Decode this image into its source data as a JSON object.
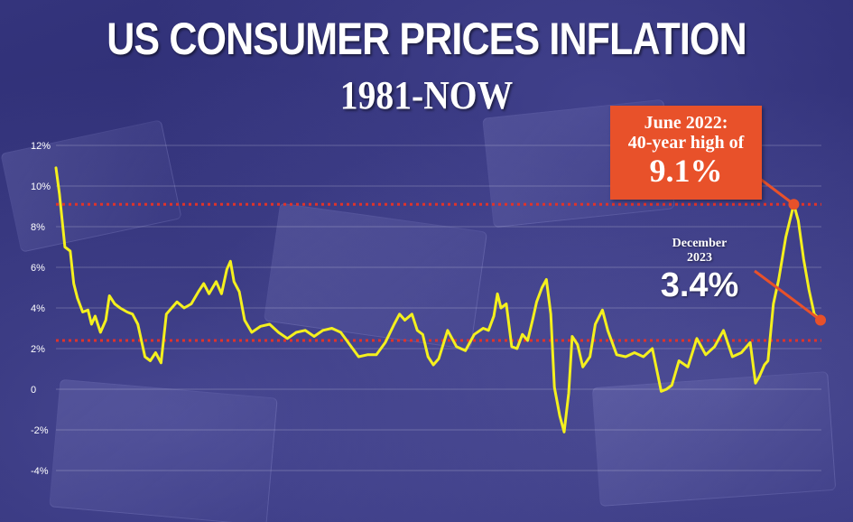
{
  "title": "US CONSUMER PRICES INFLATION",
  "subtitle": "1981-NOW",
  "colors": {
    "line": "#f4f01e",
    "reference_line": "#e0332a",
    "annotation_box": "#e8512a",
    "annotation_dot": "#e8512a",
    "text": "#ffffff"
  },
  "annotations": {
    "peak": {
      "line1": "June 2022:",
      "line2": "40-year high of",
      "value": "9.1%"
    },
    "latest": {
      "line1": "December",
      "line2": "2023",
      "value": "3.4%"
    }
  },
  "chart_data": {
    "type": "line",
    "title": "US CONSUMER PRICES INFLATION",
    "subtitle": "1981-NOW",
    "xlabel": "",
    "ylabel": "",
    "xlim": [
      1981,
      2024
    ],
    "ylim": [
      -4,
      12
    ],
    "yticks": [
      {
        "value": 12,
        "label": "12%"
      },
      {
        "value": 10,
        "label": "10%"
      },
      {
        "value": 8,
        "label": "8%"
      },
      {
        "value": 6,
        "label": "6%"
      },
      {
        "value": 4,
        "label": "4%"
      },
      {
        "value": 2,
        "label": "2%"
      },
      {
        "value": 0,
        "label": "0"
      },
      {
        "value": -2,
        "label": "-2%"
      },
      {
        "value": -4,
        "label": "-4%"
      }
    ],
    "grid": true,
    "reference_lines": [
      9.1,
      2.4
    ],
    "highlight_points": [
      {
        "x": 2022.45,
        "y": 9.1
      },
      {
        "x": 2023.95,
        "y": 3.4
      }
    ],
    "series": [
      {
        "x": [
          1981.0,
          1981.2,
          1981.5,
          1981.8,
          1982.0,
          1982.2,
          1982.5,
          1982.8,
          1983.0,
          1983.2,
          1983.5,
          1983.8,
          1984.0,
          1984.3,
          1984.6,
          1985.0,
          1985.3,
          1985.6,
          1986.0,
          1986.3,
          1986.6,
          1986.9,
          1987.2,
          1987.5,
          1987.8,
          1988.2,
          1988.6,
          1989.0,
          1989.3,
          1989.6,
          1990.0,
          1990.3,
          1990.6,
          1990.8,
          1991.0,
          1991.3,
          1991.6,
          1992.0,
          1992.5,
          1993.0,
          1993.5,
          1994.0,
          1994.5,
          1995.0,
          1995.5,
          1996.0,
          1996.5,
          1997.0,
          1997.5,
          1998.0,
          1998.5,
          1999.0,
          1999.5,
          2000.0,
          2000.3,
          2000.6,
          2001.0,
          2001.3,
          2001.6,
          2001.9,
          2002.2,
          2002.5,
          2003.0,
          2003.5,
          2004.0,
          2004.5,
          2005.0,
          2005.3,
          2005.6,
          2005.8,
          2006.0,
          2006.3,
          2006.6,
          2006.9,
          2007.2,
          2007.5,
          2007.8,
          2008.0,
          2008.3,
          2008.55,
          2008.8,
          2009.0,
          2009.3,
          2009.55,
          2009.8,
          2010.0,
          2010.3,
          2010.6,
          2011.0,
          2011.3,
          2011.7,
          2012.0,
          2012.5,
          2013.0,
          2013.5,
          2014.0,
          2014.5,
          2015.0,
          2015.3,
          2015.6,
          2016.0,
          2016.5,
          2017.0,
          2017.5,
          2018.0,
          2018.5,
          2019.0,
          2019.5,
          2020.0,
          2020.3,
          2020.5,
          2020.8,
          2021.0,
          2021.3,
          2021.6,
          2022.0,
          2022.45,
          2022.7,
          2023.0,
          2023.3,
          2023.6,
          2023.95
        ],
        "y": [
          10.9,
          9.6,
          7.0,
          6.8,
          5.2,
          4.5,
          3.8,
          3.9,
          3.2,
          3.6,
          2.8,
          3.4,
          4.6,
          4.2,
          4.0,
          3.8,
          3.7,
          3.2,
          1.6,
          1.4,
          1.8,
          1.3,
          3.7,
          4.0,
          4.3,
          4.0,
          4.2,
          4.8,
          5.2,
          4.7,
          5.3,
          4.7,
          5.9,
          6.3,
          5.3,
          4.8,
          3.4,
          2.8,
          3.1,
          3.2,
          2.8,
          2.5,
          2.8,
          2.9,
          2.6,
          2.9,
          3.0,
          2.8,
          2.2,
          1.6,
          1.7,
          1.7,
          2.3,
          3.2,
          3.7,
          3.4,
          3.7,
          2.9,
          2.7,
          1.6,
          1.2,
          1.5,
          2.9,
          2.1,
          1.9,
          2.7,
          3.0,
          2.9,
          3.6,
          4.7,
          4.0,
          4.2,
          2.1,
          2.0,
          2.7,
          2.4,
          3.5,
          4.3,
          5.0,
          5.4,
          3.7,
          0.1,
          -1.3,
          -2.1,
          -0.2,
          2.6,
          2.2,
          1.1,
          1.6,
          3.2,
          3.9,
          2.9,
          1.7,
          1.6,
          1.8,
          1.6,
          2.0,
          -0.1,
          0.0,
          0.2,
          1.4,
          1.1,
          2.5,
          1.7,
          2.1,
          2.9,
          1.6,
          1.8,
          2.3,
          0.3,
          0.6,
          1.2,
          1.4,
          4.2,
          5.4,
          7.5,
          9.1,
          8.3,
          6.4,
          4.9,
          3.7,
          3.4
        ]
      }
    ]
  }
}
